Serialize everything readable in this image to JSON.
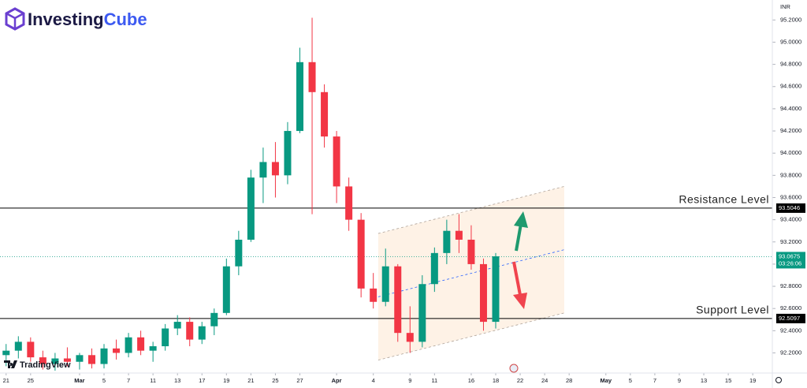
{
  "branding": {
    "logo_first": "Investing",
    "logo_second": "Cube",
    "watermark": "TradingView"
  },
  "chart_data": {
    "type": "candlestick",
    "currency": "INR",
    "xlim": [
      -0.5,
      62.6
    ],
    "xticks": [
      {
        "value": 0,
        "label": "21"
      },
      {
        "value": 2,
        "label": "25"
      },
      {
        "value": 6,
        "label": "Mar"
      },
      {
        "value": 8,
        "label": "5"
      },
      {
        "value": 10,
        "label": "7"
      },
      {
        "value": 12,
        "label": "11"
      },
      {
        "value": 14,
        "label": "13"
      },
      {
        "value": 16,
        "label": "17"
      },
      {
        "value": 18,
        "label": "19"
      },
      {
        "value": 20,
        "label": "21"
      },
      {
        "value": 22,
        "label": "25"
      },
      {
        "value": 24,
        "label": "27"
      },
      {
        "value": 27,
        "label": "Apr"
      },
      {
        "value": 30,
        "label": "4"
      },
      {
        "value": 33,
        "label": "9"
      },
      {
        "value": 35,
        "label": "11"
      },
      {
        "value": 38,
        "label": "16"
      },
      {
        "value": 40,
        "label": "18"
      },
      {
        "value": 42,
        "label": "22"
      },
      {
        "value": 44,
        "label": "24"
      },
      {
        "value": 46,
        "label": "28"
      },
      {
        "value": 49,
        "label": "May"
      },
      {
        "value": 51,
        "label": "5"
      },
      {
        "value": 53,
        "label": "7"
      },
      {
        "value": 55,
        "label": "9"
      },
      {
        "value": 57,
        "label": "13"
      },
      {
        "value": 59,
        "label": "15"
      },
      {
        "value": 61,
        "label": "19"
      }
    ],
    "ylim": [
      92.04,
      95.38
    ],
    "yticks": [
      {
        "value": 92.2,
        "label": "92.2000"
      },
      {
        "value": 92.4,
        "label": "92.4000"
      },
      {
        "value": 92.6,
        "label": "92.6000"
      },
      {
        "value": 92.8,
        "label": "92.8000"
      },
      {
        "value": 93.0,
        "label": "93.0000"
      },
      {
        "value": 93.2,
        "label": "93.2000"
      },
      {
        "value": 93.4,
        "label": "93.4000"
      },
      {
        "value": 93.6,
        "label": "93.6000"
      },
      {
        "value": 93.8,
        "label": "93.8000"
      },
      {
        "value": 94.0,
        "label": "94.0000"
      },
      {
        "value": 94.2,
        "label": "94.2000"
      },
      {
        "value": 94.4,
        "label": "94.4000"
      },
      {
        "value": 94.6,
        "label": "94.6000"
      },
      {
        "value": 94.8,
        "label": "94.8000"
      },
      {
        "value": 95.0,
        "label": "95.0000"
      },
      {
        "value": 95.2,
        "label": "95.2000"
      }
    ],
    "up_color": "#089981",
    "down_color": "#f23645",
    "x": [
      0,
      1,
      2,
      3,
      4,
      5,
      6,
      7,
      8,
      9,
      10,
      11,
      12,
      13,
      14,
      15,
      16,
      17,
      18,
      19,
      20,
      21,
      22,
      23,
      24,
      25,
      26,
      27,
      28,
      29,
      30,
      31,
      32,
      33,
      34,
      35,
      36,
      37,
      38,
      39,
      40
    ],
    "open": [
      92.18,
      92.22,
      92.3,
      92.16,
      92.1,
      92.15,
      92.12,
      92.18,
      92.1,
      92.24,
      92.2,
      92.34,
      92.22,
      92.26,
      92.42,
      92.48,
      92.32,
      92.44,
      92.56,
      92.98,
      93.22,
      93.78,
      93.92,
      93.8,
      94.2,
      94.82,
      94.55,
      94.15,
      93.7,
      93.4,
      92.78,
      92.66,
      92.98,
      92.38,
      92.3,
      92.82,
      93.1,
      93.3,
      93.22,
      93.0,
      92.48
    ],
    "high": [
      92.28,
      92.35,
      92.34,
      92.22,
      92.2,
      92.25,
      92.2,
      92.24,
      92.28,
      92.32,
      92.38,
      92.4,
      92.3,
      92.46,
      92.54,
      92.52,
      92.48,
      92.6,
      93.05,
      93.3,
      93.85,
      94.05,
      94.1,
      94.28,
      94.95,
      95.22,
      94.62,
      94.2,
      93.78,
      93.46,
      92.92,
      93.14,
      93.0,
      92.62,
      92.9,
      93.15,
      93.4,
      93.45,
      93.35,
      93.05,
      93.1
    ],
    "low": [
      92.08,
      92.15,
      92.12,
      92.05,
      92.04,
      92.08,
      92.05,
      92.06,
      92.06,
      92.14,
      92.16,
      92.18,
      92.12,
      92.22,
      92.36,
      92.26,
      92.28,
      92.36,
      92.54,
      92.9,
      93.2,
      93.55,
      93.6,
      93.72,
      94.18,
      93.45,
      94.05,
      93.55,
      93.3,
      92.7,
      92.6,
      92.62,
      92.3,
      92.2,
      92.25,
      92.75,
      93.0,
      93.1,
      92.95,
      92.4,
      92.42
    ],
    "close": [
      92.22,
      92.3,
      92.16,
      92.1,
      92.15,
      92.12,
      92.18,
      92.1,
      92.24,
      92.2,
      92.34,
      92.22,
      92.26,
      92.42,
      92.48,
      92.32,
      92.44,
      92.56,
      92.98,
      93.22,
      93.78,
      93.92,
      93.8,
      94.2,
      94.82,
      94.55,
      94.15,
      93.7,
      93.4,
      92.78,
      92.66,
      92.98,
      92.38,
      92.3,
      92.82,
      93.1,
      93.3,
      93.22,
      93.0,
      92.48,
      93.07
    ],
    "levels": [
      {
        "name": "Resistance Level",
        "value": 93.5046,
        "color": "#000000"
      },
      {
        "name": "Support Level",
        "value": 92.5097,
        "color": "#000000"
      }
    ],
    "current_price": {
      "value": 93.0675,
      "countdown": "03:26:06",
      "color": "#089981"
    },
    "channel": {
      "x": [
        30.4,
        45.6
      ],
      "upper": [
        93.276,
        93.7
      ],
      "middle": [
        92.705,
        93.13
      ],
      "lower": [
        92.135,
        92.56
      ],
      "fill": "#fdeedd",
      "edge_color": "#b0a49a",
      "middle_color": "#2962ff"
    }
  }
}
